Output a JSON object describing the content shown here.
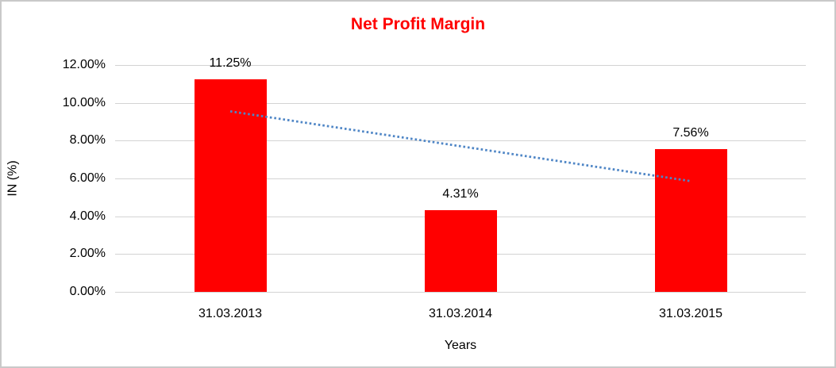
{
  "chart_data": {
    "type": "bar",
    "title": "Net Profit Margin",
    "title_color": "#ff0000",
    "xlabel": "Years",
    "ylabel": "IN (%)",
    "categories": [
      "31.03.2013",
      "31.03.2014",
      "31.03.2015"
    ],
    "series": [
      {
        "name": "Net Profit Margin",
        "values": [
          11.25,
          4.31,
          7.56
        ],
        "data_labels": [
          "11.25%",
          "4.31%",
          "7.56%"
        ],
        "bar_color": "#ff0000"
      }
    ],
    "ylim": [
      0,
      12
    ],
    "ytick_step": 2,
    "yticks_top_to_bottom": [
      "12.00%",
      "10.00%",
      "8.00%",
      "6.00%",
      "4.00%",
      "2.00%",
      "0.00%"
    ],
    "grid": true,
    "gridline_color": "#d3d3d3",
    "legend": "none",
    "trendline": {
      "type": "linear",
      "style": "dotted",
      "color": "#4f86c6",
      "start_value": 9.55,
      "end_value": 5.86
    }
  }
}
